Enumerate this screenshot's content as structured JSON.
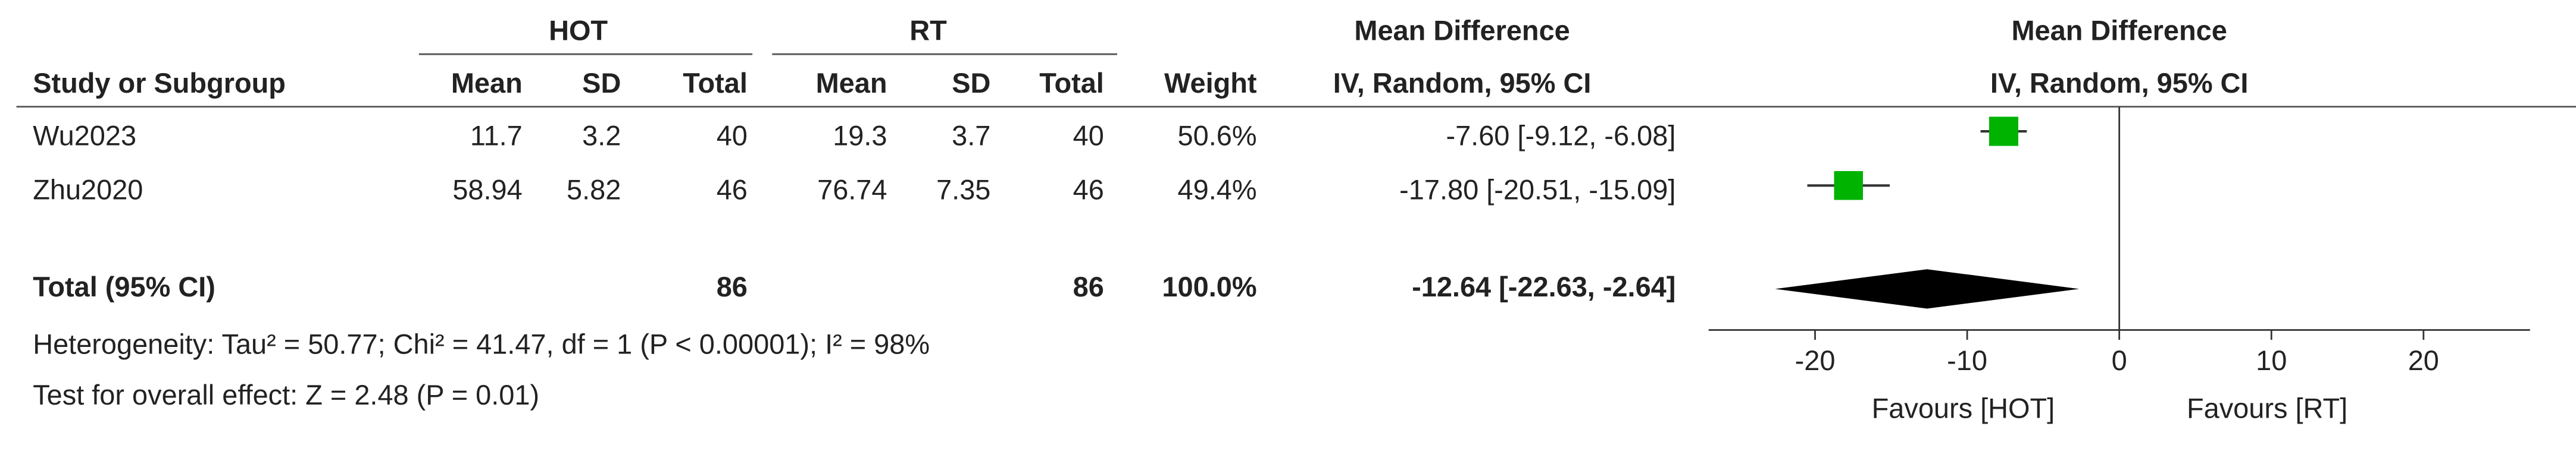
{
  "chart_data": {
    "type": "forest",
    "header": {
      "group1": "HOT",
      "group2": "RT",
      "effect": "Mean Difference",
      "plot_title": "Mean Difference",
      "columns": [
        "Study or Subgroup",
        "Mean",
        "SD",
        "Total",
        "Mean",
        "SD",
        "Total",
        "Weight"
      ],
      "method": "IV, Random, 95% CI",
      "plot_method": "IV, Random, 95% CI"
    },
    "rows": [
      {
        "name": "Wu2023",
        "cells": [
          "11.7",
          "3.2",
          "40",
          "19.3",
          "3.7",
          "40",
          "50.6%"
        ],
        "ci_text": "-7.60 [-9.12, -6.08]",
        "md": -7.6,
        "ci": [
          -9.12,
          -6.08
        ],
        "weight": 50.6
      },
      {
        "name": "Zhu2020",
        "cells": [
          "58.94",
          "5.82",
          "46",
          "76.74",
          "7.35",
          "46",
          "49.4%"
        ],
        "ci_text": "-17.80 [-20.51, -15.09]",
        "md": -17.8,
        "ci": [
          -20.51,
          -15.09
        ],
        "weight": 49.4
      }
    ],
    "total": {
      "name": "Total (95% CI)",
      "cells": [
        "86",
        "86",
        "100.0%"
      ],
      "ci_text": "-12.64 [-22.63, -2.64]",
      "md": -12.64,
      "ci": [
        -22.63,
        -2.64
      ]
    },
    "heterogeneity": "Heterogeneity: Tau² = 50.77; Chi² = 41.47, df = 1 (P < 0.00001); I² = 98%",
    "overall_effect": "Test for overall effect: Z = 2.48 (P = 0.01)",
    "xlim": [
      -27,
      27
    ],
    "xticks": [
      -20,
      -10,
      0,
      10,
      20
    ],
    "favours_left": "Favours [HOT]",
    "favours_right": "Favours [RT]",
    "square_color": "#00b300",
    "diamond_color": "#000000"
  }
}
